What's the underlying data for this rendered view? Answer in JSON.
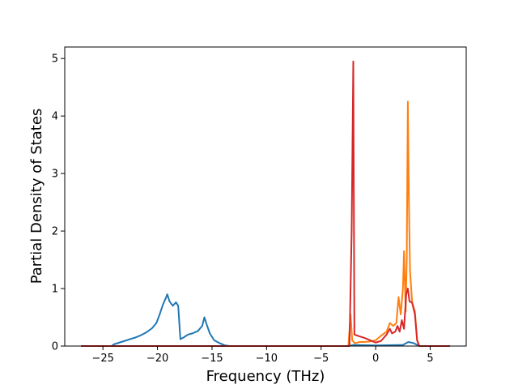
{
  "chart_data": {
    "type": "line",
    "title": "",
    "xlabel": "Frequency (THz)",
    "ylabel": "Partial Density of States",
    "xlim": [
      -28.5,
      8.3
    ],
    "ylim": [
      0,
      5.2
    ],
    "xticks": [
      -25,
      -20,
      -15,
      -10,
      -5,
      0,
      5
    ],
    "xtick_labels": [
      "−25",
      "−20",
      "−15",
      "−10",
      "−5",
      "0",
      "5"
    ],
    "yticks": [
      0,
      1,
      2,
      3,
      4,
      5
    ],
    "ytick_labels": [
      "0",
      "1",
      "2",
      "3",
      "4",
      "5"
    ],
    "grid": false,
    "legend": "none",
    "series": [
      {
        "color": "#1f77b4",
        "points": [
          [
            -27,
            0
          ],
          [
            -24.2,
            0
          ],
          [
            -24,
            0.03
          ],
          [
            -23.5,
            0.06
          ],
          [
            -23,
            0.09
          ],
          [
            -22.5,
            0.12
          ],
          [
            -22,
            0.15
          ],
          [
            -21.5,
            0.19
          ],
          [
            -21,
            0.24
          ],
          [
            -20.5,
            0.31
          ],
          [
            -20.1,
            0.4
          ],
          [
            -19.8,
            0.55
          ],
          [
            -19.5,
            0.72
          ],
          [
            -19.2,
            0.85
          ],
          [
            -19.1,
            0.9
          ],
          [
            -18.9,
            0.78
          ],
          [
            -18.6,
            0.7
          ],
          [
            -18.3,
            0.76
          ],
          [
            -18.1,
            0.7
          ],
          [
            -17.9,
            0.12
          ],
          [
            -17.6,
            0.15
          ],
          [
            -17.2,
            0.2
          ],
          [
            -16.8,
            0.22
          ],
          [
            -16.3,
            0.26
          ],
          [
            -15.9,
            0.35
          ],
          [
            -15.7,
            0.5
          ],
          [
            -15.5,
            0.38
          ],
          [
            -15.2,
            0.22
          ],
          [
            -14.8,
            0.1
          ],
          [
            -14.3,
            0.05
          ],
          [
            -13.8,
            0.01
          ],
          [
            -13.4,
            0
          ],
          [
            -2.5,
            0
          ],
          [
            -2,
            0.02
          ],
          [
            0,
            0.01
          ],
          [
            2.5,
            0.02
          ],
          [
            3,
            0.07
          ],
          [
            3.5,
            0.05
          ],
          [
            3.8,
            0.02
          ],
          [
            4,
            0
          ],
          [
            6.8,
            0
          ]
        ]
      },
      {
        "color": "#ff7f0e",
        "points": [
          [
            -27,
            0
          ],
          [
            -2.5,
            0
          ],
          [
            -2.3,
            0.55
          ],
          [
            -2.15,
            0.1
          ],
          [
            -1.9,
            0.05
          ],
          [
            -1.5,
            0.07
          ],
          [
            -1,
            0.07
          ],
          [
            -0.5,
            0.08
          ],
          [
            0,
            0.1
          ],
          [
            0.5,
            0.18
          ],
          [
            1,
            0.25
          ],
          [
            1.3,
            0.4
          ],
          [
            1.6,
            0.35
          ],
          [
            1.9,
            0.4
          ],
          [
            2.1,
            0.85
          ],
          [
            2.3,
            0.55
          ],
          [
            2.5,
            1.0
          ],
          [
            2.6,
            1.65
          ],
          [
            2.75,
            0.6
          ],
          [
            2.85,
            1.5
          ],
          [
            2.95,
            4.25
          ],
          [
            3.05,
            2.5
          ],
          [
            3.15,
            1.3
          ],
          [
            3.35,
            0.75
          ],
          [
            3.6,
            0.6
          ],
          [
            3.8,
            0.1
          ],
          [
            4,
            0
          ],
          [
            6.8,
            0
          ]
        ]
      },
      {
        "color": "#d62728",
        "points": [
          [
            -27,
            0
          ],
          [
            -2.4,
            0
          ],
          [
            -2.2,
            2.0
          ],
          [
            -2.05,
            4.95
          ],
          [
            -1.95,
            0.2
          ],
          [
            -1.5,
            0.17
          ],
          [
            -1,
            0.14
          ],
          [
            -0.5,
            0.1
          ],
          [
            0,
            0.06
          ],
          [
            0.5,
            0.09
          ],
          [
            1,
            0.2
          ],
          [
            1.3,
            0.3
          ],
          [
            1.5,
            0.22
          ],
          [
            1.8,
            0.25
          ],
          [
            2.0,
            0.35
          ],
          [
            2.2,
            0.25
          ],
          [
            2.4,
            0.45
          ],
          [
            2.6,
            0.3
          ],
          [
            2.8,
            0.9
          ],
          [
            2.95,
            1.0
          ],
          [
            3.1,
            0.78
          ],
          [
            3.35,
            0.75
          ],
          [
            3.6,
            0.55
          ],
          [
            3.8,
            0.1
          ],
          [
            4,
            0
          ],
          [
            6.8,
            0
          ]
        ]
      }
    ]
  }
}
